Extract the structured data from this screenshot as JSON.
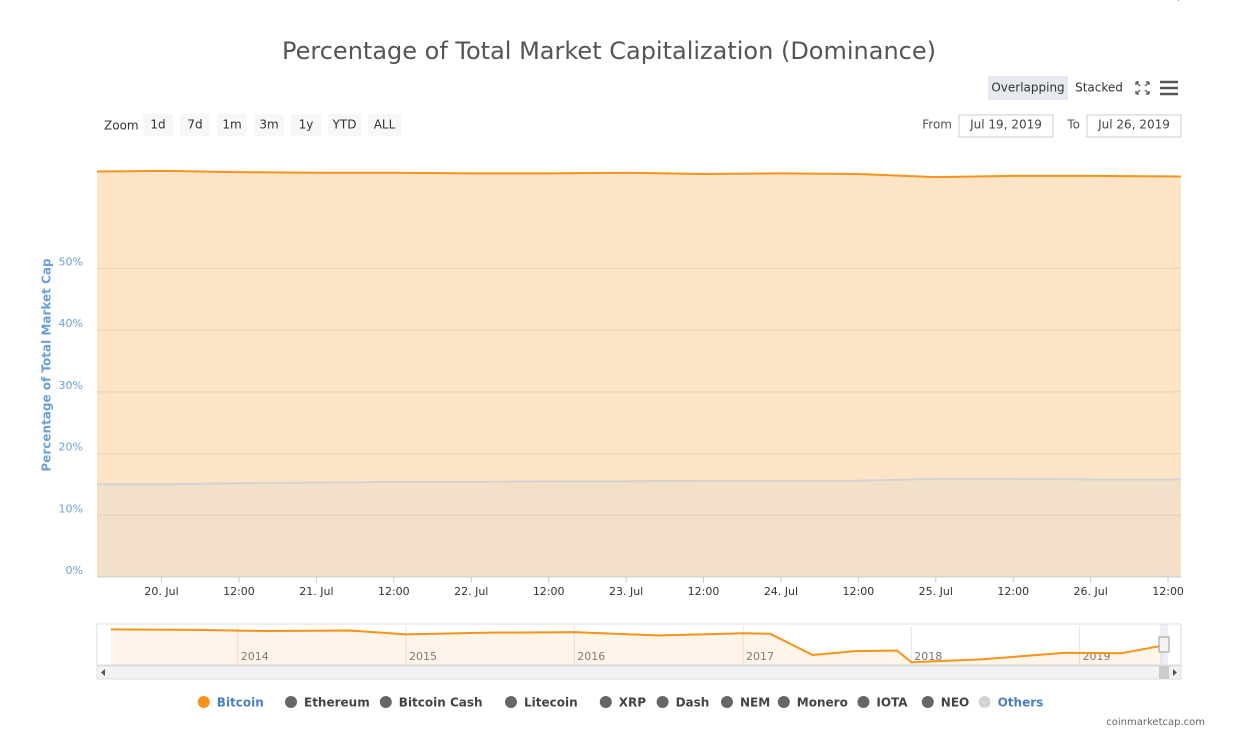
{
  "chart_data": {
    "type": "area",
    "title": "Percentage of Total Market Capitalization (Dominance)",
    "credits": "coinmarketcap.com",
    "y_axis_label": "Percentage of Total Market Cap",
    "view_modes": [
      "Overlapping",
      "Stacked"
    ],
    "active_view_mode": "Overlapping",
    "zoom_label": "Zoom",
    "zoom_buttons": [
      "1d",
      "7d",
      "1m",
      "3m",
      "1y",
      "YTD",
      "ALL"
    ],
    "from_label": "From",
    "from_date": "Jul 19, 2019",
    "to_label": "To",
    "to_date": "Jul 26, 2019",
    "ylim": [
      0,
      70
    ],
    "yticks": [
      {
        "value": 0,
        "label": "0%"
      },
      {
        "value": 10,
        "label": "10%"
      },
      {
        "value": 20,
        "label": "20%"
      },
      {
        "value": 30,
        "label": "30%"
      },
      {
        "value": 40,
        "label": "40%"
      },
      {
        "value": 50,
        "label": "50%"
      }
    ],
    "grid": true,
    "xlim": [
      "2019-07-19 14:00",
      "2019-07-26 14:00"
    ],
    "xticks": [
      {
        "value": "2019-07-20 00:00",
        "label": "20. Jul"
      },
      {
        "value": "2019-07-20 12:00",
        "label": "12:00"
      },
      {
        "value": "2019-07-21 00:00",
        "label": "21. Jul"
      },
      {
        "value": "2019-07-21 12:00",
        "label": "12:00"
      },
      {
        "value": "2019-07-22 00:00",
        "label": "22. Jul"
      },
      {
        "value": "2019-07-22 12:00",
        "label": "12:00"
      },
      {
        "value": "2019-07-23 00:00",
        "label": "23. Jul"
      },
      {
        "value": "2019-07-23 12:00",
        "label": "12:00"
      },
      {
        "value": "2019-07-24 00:00",
        "label": "24. Jul"
      },
      {
        "value": "2019-07-24 12:00",
        "label": "12:00"
      },
      {
        "value": "2019-07-25 00:00",
        "label": "25. Jul"
      },
      {
        "value": "2019-07-25 12:00",
        "label": "12:00"
      },
      {
        "value": "2019-07-26 00:00",
        "label": "26. Jul"
      },
      {
        "value": "2019-07-26 12:00",
        "label": "12:00"
      }
    ],
    "x": [
      "2019-07-19 14:00",
      "2019-07-20 00:00",
      "2019-07-20 12:00",
      "2019-07-21 00:00",
      "2019-07-21 12:00",
      "2019-07-22 00:00",
      "2019-07-22 12:00",
      "2019-07-23 00:00",
      "2019-07-23 12:00",
      "2019-07-24 00:00",
      "2019-07-24 12:00",
      "2019-07-25 00:00",
      "2019-07-25 12:00",
      "2019-07-26 00:00",
      "2019-07-26 14:00"
    ],
    "series": [
      {
        "name": "Bitcoin",
        "color": "#f7931a",
        "visible": true,
        "values": [
          65.7,
          65.8,
          65.6,
          65.5,
          65.5,
          65.4,
          65.4,
          65.5,
          65.3,
          65.4,
          65.3,
          64.8,
          65.0,
          65.0,
          64.9
        ]
      },
      {
        "name": "Ethereum",
        "color": "#666666",
        "visible": false,
        "values": [
          null,
          null,
          null,
          null,
          null,
          null,
          null,
          null,
          null,
          null,
          null,
          null,
          null,
          null,
          null
        ]
      },
      {
        "name": "Bitcoin Cash",
        "color": "#666666",
        "visible": false,
        "values": [
          null,
          null,
          null,
          null,
          null,
          null,
          null,
          null,
          null,
          null,
          null,
          null,
          null,
          null,
          null
        ]
      },
      {
        "name": "Litecoin",
        "color": "#666666",
        "visible": false,
        "values": [
          null,
          null,
          null,
          null,
          null,
          null,
          null,
          null,
          null,
          null,
          null,
          null,
          null,
          null,
          null
        ]
      },
      {
        "name": "XRP",
        "color": "#666666",
        "visible": false,
        "values": [
          null,
          null,
          null,
          null,
          null,
          null,
          null,
          null,
          null,
          null,
          null,
          null,
          null,
          null,
          null
        ]
      },
      {
        "name": "Dash",
        "color": "#666666",
        "visible": false,
        "values": [
          null,
          null,
          null,
          null,
          null,
          null,
          null,
          null,
          null,
          null,
          null,
          null,
          null,
          null,
          null
        ]
      },
      {
        "name": "NEM",
        "color": "#666666",
        "visible": false,
        "values": [
          null,
          null,
          null,
          null,
          null,
          null,
          null,
          null,
          null,
          null,
          null,
          null,
          null,
          null,
          null
        ]
      },
      {
        "name": "Monero",
        "color": "#666666",
        "visible": false,
        "values": [
          null,
          null,
          null,
          null,
          null,
          null,
          null,
          null,
          null,
          null,
          null,
          null,
          null,
          null,
          null
        ]
      },
      {
        "name": "IOTA",
        "color": "#666666",
        "visible": false,
        "values": [
          null,
          null,
          null,
          null,
          null,
          null,
          null,
          null,
          null,
          null,
          null,
          null,
          null,
          null,
          null
        ]
      },
      {
        "name": "NEO",
        "color": "#666666",
        "visible": false,
        "values": [
          null,
          null,
          null,
          null,
          null,
          null,
          null,
          null,
          null,
          null,
          null,
          null,
          null,
          null,
          null
        ]
      },
      {
        "name": "Others",
        "color": "#d3d3d3",
        "visible": true,
        "values": [
          15.0,
          15.0,
          15.2,
          15.3,
          15.4,
          15.4,
          15.5,
          15.5,
          15.6,
          15.6,
          15.6,
          15.9,
          15.9,
          15.8,
          15.8
        ]
      }
    ],
    "navigator": {
      "xlim": [
        "2013-04",
        "2019-07"
      ],
      "ylim": [
        30,
        100
      ],
      "xticks": [
        {
          "value": "2014-01",
          "label": "2014"
        },
        {
          "value": "2015-01",
          "label": "2015"
        },
        {
          "value": "2016-01",
          "label": "2016"
        },
        {
          "value": "2017-01",
          "label": "2017"
        },
        {
          "value": "2018-01",
          "label": "2018"
        },
        {
          "value": "2019-01",
          "label": "2019"
        }
      ],
      "x": [
        "2013-04",
        "2013-10",
        "2014-03",
        "2014-09",
        "2015-01",
        "2015-07",
        "2016-01",
        "2016-07",
        "2017-01",
        "2017-03",
        "2017-06",
        "2017-09",
        "2017-12",
        "2018-01",
        "2018-06",
        "2018-12",
        "2019-04",
        "2019-07"
      ],
      "values": [
        94,
        93,
        91,
        92,
        85,
        88,
        89,
        83,
        87,
        86,
        48,
        55,
        56,
        35,
        40,
        52,
        51,
        65
      ]
    }
  }
}
